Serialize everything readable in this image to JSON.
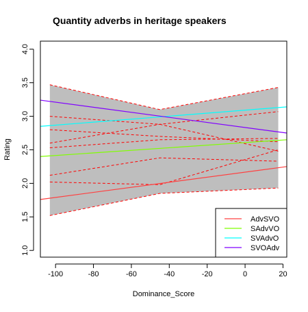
{
  "chart_data": {
    "type": "line",
    "title": "Quantity adverbs in heritage speakers",
    "xlabel": "Dominance_Score",
    "ylabel": "Rating",
    "xlim": [
      -108,
      22
    ],
    "ylim": [
      0.9,
      4.12
    ],
    "x_ticks": [
      -100,
      -80,
      -60,
      -40,
      -20,
      0,
      20
    ],
    "x_tick_labels": [
      "-100",
      "-80",
      "-60",
      "-40",
      "-20",
      "0",
      "20"
    ],
    "y_ticks": [
      1.0,
      1.5,
      2.0,
      2.5,
      3.0,
      3.5,
      4.0
    ],
    "y_tick_labels": [
      "1.0",
      "1.5",
      "2.0",
      "2.5",
      "3.0",
      "3.5",
      "4.0"
    ],
    "grid": false,
    "legend_position": "bottom-right",
    "confidence_band": {
      "color": "#bebebe",
      "edge_color": "#ff0000",
      "x": [
        -103,
        -45,
        17.5
      ],
      "upper": [
        3.47,
        3.1,
        3.43
      ],
      "lower": [
        1.52,
        1.85,
        1.93
      ]
    },
    "inner_bounds": [
      {
        "x": [
          -103,
          -45,
          17.5
        ],
        "y": [
          3.0,
          2.88,
          2.48
        ]
      },
      {
        "x": [
          -103,
          -45,
          17.5
        ],
        "y": [
          2.6,
          2.88,
          3.07
        ]
      },
      {
        "x": [
          -103,
          -45,
          17.5
        ],
        "y": [
          2.12,
          2.38,
          2.33
        ]
      },
      {
        "x": [
          -103,
          -45,
          17.5
        ],
        "y": [
          2.02,
          1.98,
          2.5
        ]
      },
      {
        "x": [
          -103,
          -45,
          17.5
        ],
        "y": [
          2.8,
          2.7,
          2.62
        ]
      },
      {
        "x": [
          -103,
          -45,
          17.5
        ],
        "y": [
          2.53,
          2.65,
          2.67
        ]
      }
    ],
    "series": [
      {
        "name": "AdvSVO",
        "color": "#ff4040",
        "x": [
          -108,
          22
        ],
        "y": [
          1.76,
          2.25
        ]
      },
      {
        "name": "SAdvVO",
        "color": "#80ff00",
        "x": [
          -108,
          22
        ],
        "y": [
          2.4,
          2.65
        ]
      },
      {
        "name": "SVAdvO",
        "color": "#00ffff",
        "x": [
          -108,
          22
        ],
        "y": [
          2.85,
          3.14
        ]
      },
      {
        "name": "SVOAdv",
        "color": "#8000ff",
        "x": [
          -108,
          22
        ],
        "y": [
          3.24,
          2.75
        ]
      }
    ]
  }
}
